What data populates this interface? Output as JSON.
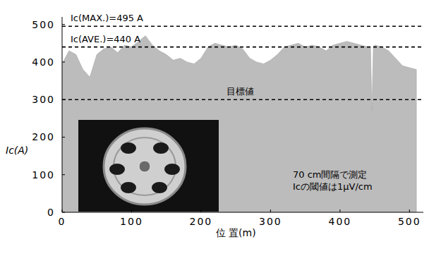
{
  "chart_data": {
    "type": "area",
    "xlabel": "位 置(m)",
    "ylabel": "Ic(A)",
    "color": "#bcbcbc",
    "x": [
      0,
      10,
      20,
      30,
      40,
      50,
      60,
      70,
      80,
      90,
      100,
      110,
      120,
      130,
      140,
      150,
      160,
      170,
      180,
      190,
      200,
      210,
      220,
      230,
      240,
      250,
      260,
      270,
      280,
      290,
      300,
      310,
      320,
      330,
      340,
      350,
      360,
      370,
      380,
      390,
      400,
      410,
      420,
      430,
      440,
      444,
      446,
      448,
      450,
      460,
      470,
      480,
      490,
      500,
      510
    ],
    "values": [
      395,
      430,
      420,
      380,
      360,
      420,
      435,
      440,
      425,
      445,
      440,
      455,
      470,
      445,
      430,
      420,
      405,
      410,
      400,
      395,
      410,
      440,
      450,
      445,
      440,
      445,
      435,
      410,
      400,
      395,
      405,
      420,
      440,
      445,
      450,
      440,
      445,
      440,
      430,
      445,
      450,
      455,
      450,
      445,
      440,
      440,
      270,
      440,
      445,
      440,
      430,
      410,
      390,
      385,
      380
    ],
    "xlim": [
      0,
      520
    ],
    "ylim": [
      0,
      520
    ],
    "xticks": [
      0,
      100,
      200,
      300,
      400,
      500
    ],
    "yticks": [
      0,
      100,
      200,
      300,
      400,
      500
    ],
    "grid": false,
    "hlines": [
      {
        "value": 495,
        "label": "Ic(MAX.)=495 A"
      },
      {
        "value": 440,
        "label": "Ic(AVE.)=440 A"
      },
      {
        "value": 300,
        "label": "目標値"
      }
    ],
    "notes": [
      "70 cm間隔で測定",
      "Icの閾値は1μV/cm"
    ]
  }
}
